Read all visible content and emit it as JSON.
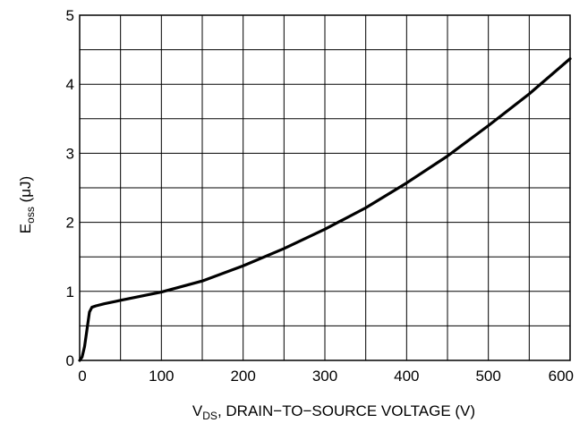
{
  "chart_data": {
    "type": "line",
    "xlabel_main": "V",
    "xlabel_sub": "DS",
    "xlabel_rest": ", DRAIN−TO−SOURCE VOLTAGE (V)",
    "ylabel_main": "E",
    "ylabel_sub": "oss",
    "ylabel_rest": " (μJ)",
    "xlim": [
      0,
      600
    ],
    "ylim": [
      0,
      5
    ],
    "xticks": [
      0,
      100,
      200,
      300,
      400,
      500,
      600
    ],
    "yticks": [
      0,
      1,
      2,
      3,
      4,
      5
    ],
    "grid": true,
    "x_grid_step": 50,
    "y_grid_step": 0.5,
    "series": [
      {
        "x": [
          0,
          3,
          6,
          9,
          12,
          15,
          20,
          30,
          50,
          75,
          100,
          150,
          200,
          250,
          300,
          350,
          400,
          450,
          500,
          550,
          600
        ],
        "y": [
          0,
          0.05,
          0.2,
          0.45,
          0.7,
          0.77,
          0.79,
          0.82,
          0.87,
          0.93,
          0.99,
          1.15,
          1.37,
          1.62,
          1.9,
          2.21,
          2.57,
          2.96,
          3.4,
          3.86,
          4.37
        ]
      }
    ]
  }
}
